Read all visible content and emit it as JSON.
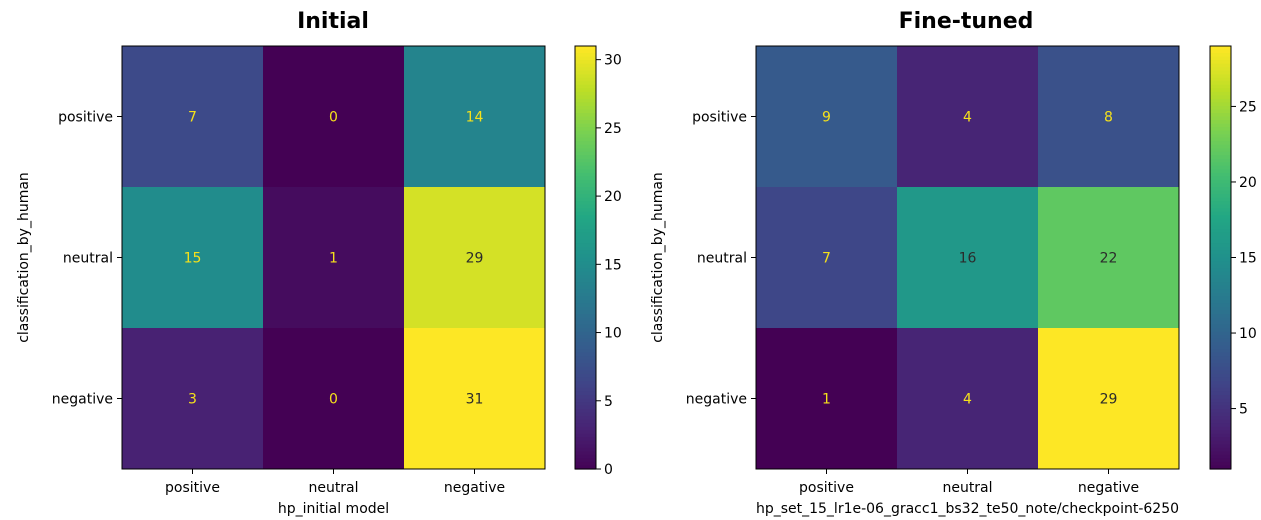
{
  "chart_data": [
    {
      "type": "heatmap",
      "title": "Initial",
      "xlabel": "hp_initial model",
      "ylabel": "classification_by_human",
      "x_categories": [
        "positive",
        "neutral",
        "negative"
      ],
      "y_categories": [
        "positive",
        "neutral",
        "negative"
      ],
      "values": [
        [
          7,
          0,
          14
        ],
        [
          15,
          1,
          29
        ],
        [
          3,
          0,
          31
        ]
      ],
      "colorbar": {
        "min": 0,
        "max": 31,
        "ticks": [
          0,
          5,
          10,
          15,
          20,
          25,
          30
        ]
      },
      "colormap": "viridis"
    },
    {
      "type": "heatmap",
      "title": "Fine-tuned",
      "xlabel": "hp_set_15_lr1e-06_gracc1_bs32_te50_note/checkpoint-6250",
      "ylabel": "classification_by_human",
      "x_categories": [
        "positive",
        "neutral",
        "negative"
      ],
      "y_categories": [
        "positive",
        "neutral",
        "negative"
      ],
      "values": [
        [
          9,
          4,
          8
        ],
        [
          7,
          16,
          22
        ],
        [
          1,
          4,
          29
        ]
      ],
      "colorbar": {
        "min": 1,
        "max": 29,
        "ticks": [
          5,
          10,
          15,
          20,
          25
        ]
      },
      "colormap": "viridis"
    }
  ]
}
